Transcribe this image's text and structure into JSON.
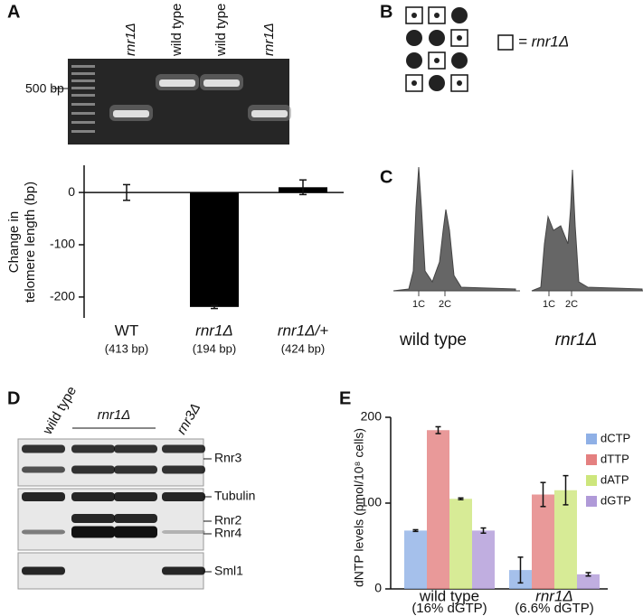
{
  "panels": {
    "A": {
      "label": "A",
      "lanes": [
        "rnr1Δ",
        "wild type",
        "wild type",
        "rnr1Δ"
      ],
      "marker": "500 bp"
    },
    "B": {
      "label": "B",
      "legend": "= rnr1Δ"
    },
    "C": {
      "label": "C",
      "peaks": [
        "1C",
        "2C",
        "1C",
        "2C"
      ],
      "samples": [
        "wild type",
        "rnr1Δ"
      ]
    },
    "D": {
      "label": "D",
      "lanes": [
        "wild type",
        "rnr1Δ",
        "rnr3Δ"
      ],
      "bands": [
        "Rnr3",
        "Tubulin",
        "Rnr2",
        "Rnr4",
        "Sml1"
      ]
    },
    "E": {
      "label": "E"
    }
  },
  "chart_data": [
    {
      "type": "bar",
      "ylabel": [
        "Change in",
        "telomere length (bp)"
      ],
      "categories": [
        "WT",
        "rnr1Δ",
        "rnr1Δ/+"
      ],
      "x_sublabels": [
        "(413 bp)",
        "(194 bp)",
        "(424 bp)"
      ],
      "values": [
        0,
        -219,
        10
      ],
      "errors": [
        15,
        3,
        14
      ],
      "color": "#000000",
      "ylim": [
        -240,
        52
      ],
      "yticks": [
        0,
        -100,
        -200
      ]
    },
    {
      "type": "bar",
      "ylabel": "dNTP levels (pmol/10⁸ cells)",
      "categories": [
        "wild type",
        "rnr1Δ"
      ],
      "x_sublabels": [
        "(16% dGTP)",
        "(6.6% dGTP)"
      ],
      "series": [
        {
          "name": "dCTP",
          "color": "#8fb0e6",
          "values": [
            68,
            22
          ],
          "errors": [
            1,
            15
          ]
        },
        {
          "name": "dTTP",
          "color": "#e48080",
          "values": [
            185,
            110
          ],
          "errors": [
            4,
            14
          ]
        },
        {
          "name": "dATP",
          "color": "#cde67c",
          "values": [
            105,
            115
          ],
          "errors": [
            1,
            17
          ]
        },
        {
          "name": "dGTP",
          "color": "#b09ad8",
          "values": [
            68,
            17
          ],
          "errors": [
            3,
            2
          ]
        }
      ],
      "ylim": [
        0,
        200
      ],
      "yticks": [
        0,
        100,
        200
      ]
    }
  ]
}
